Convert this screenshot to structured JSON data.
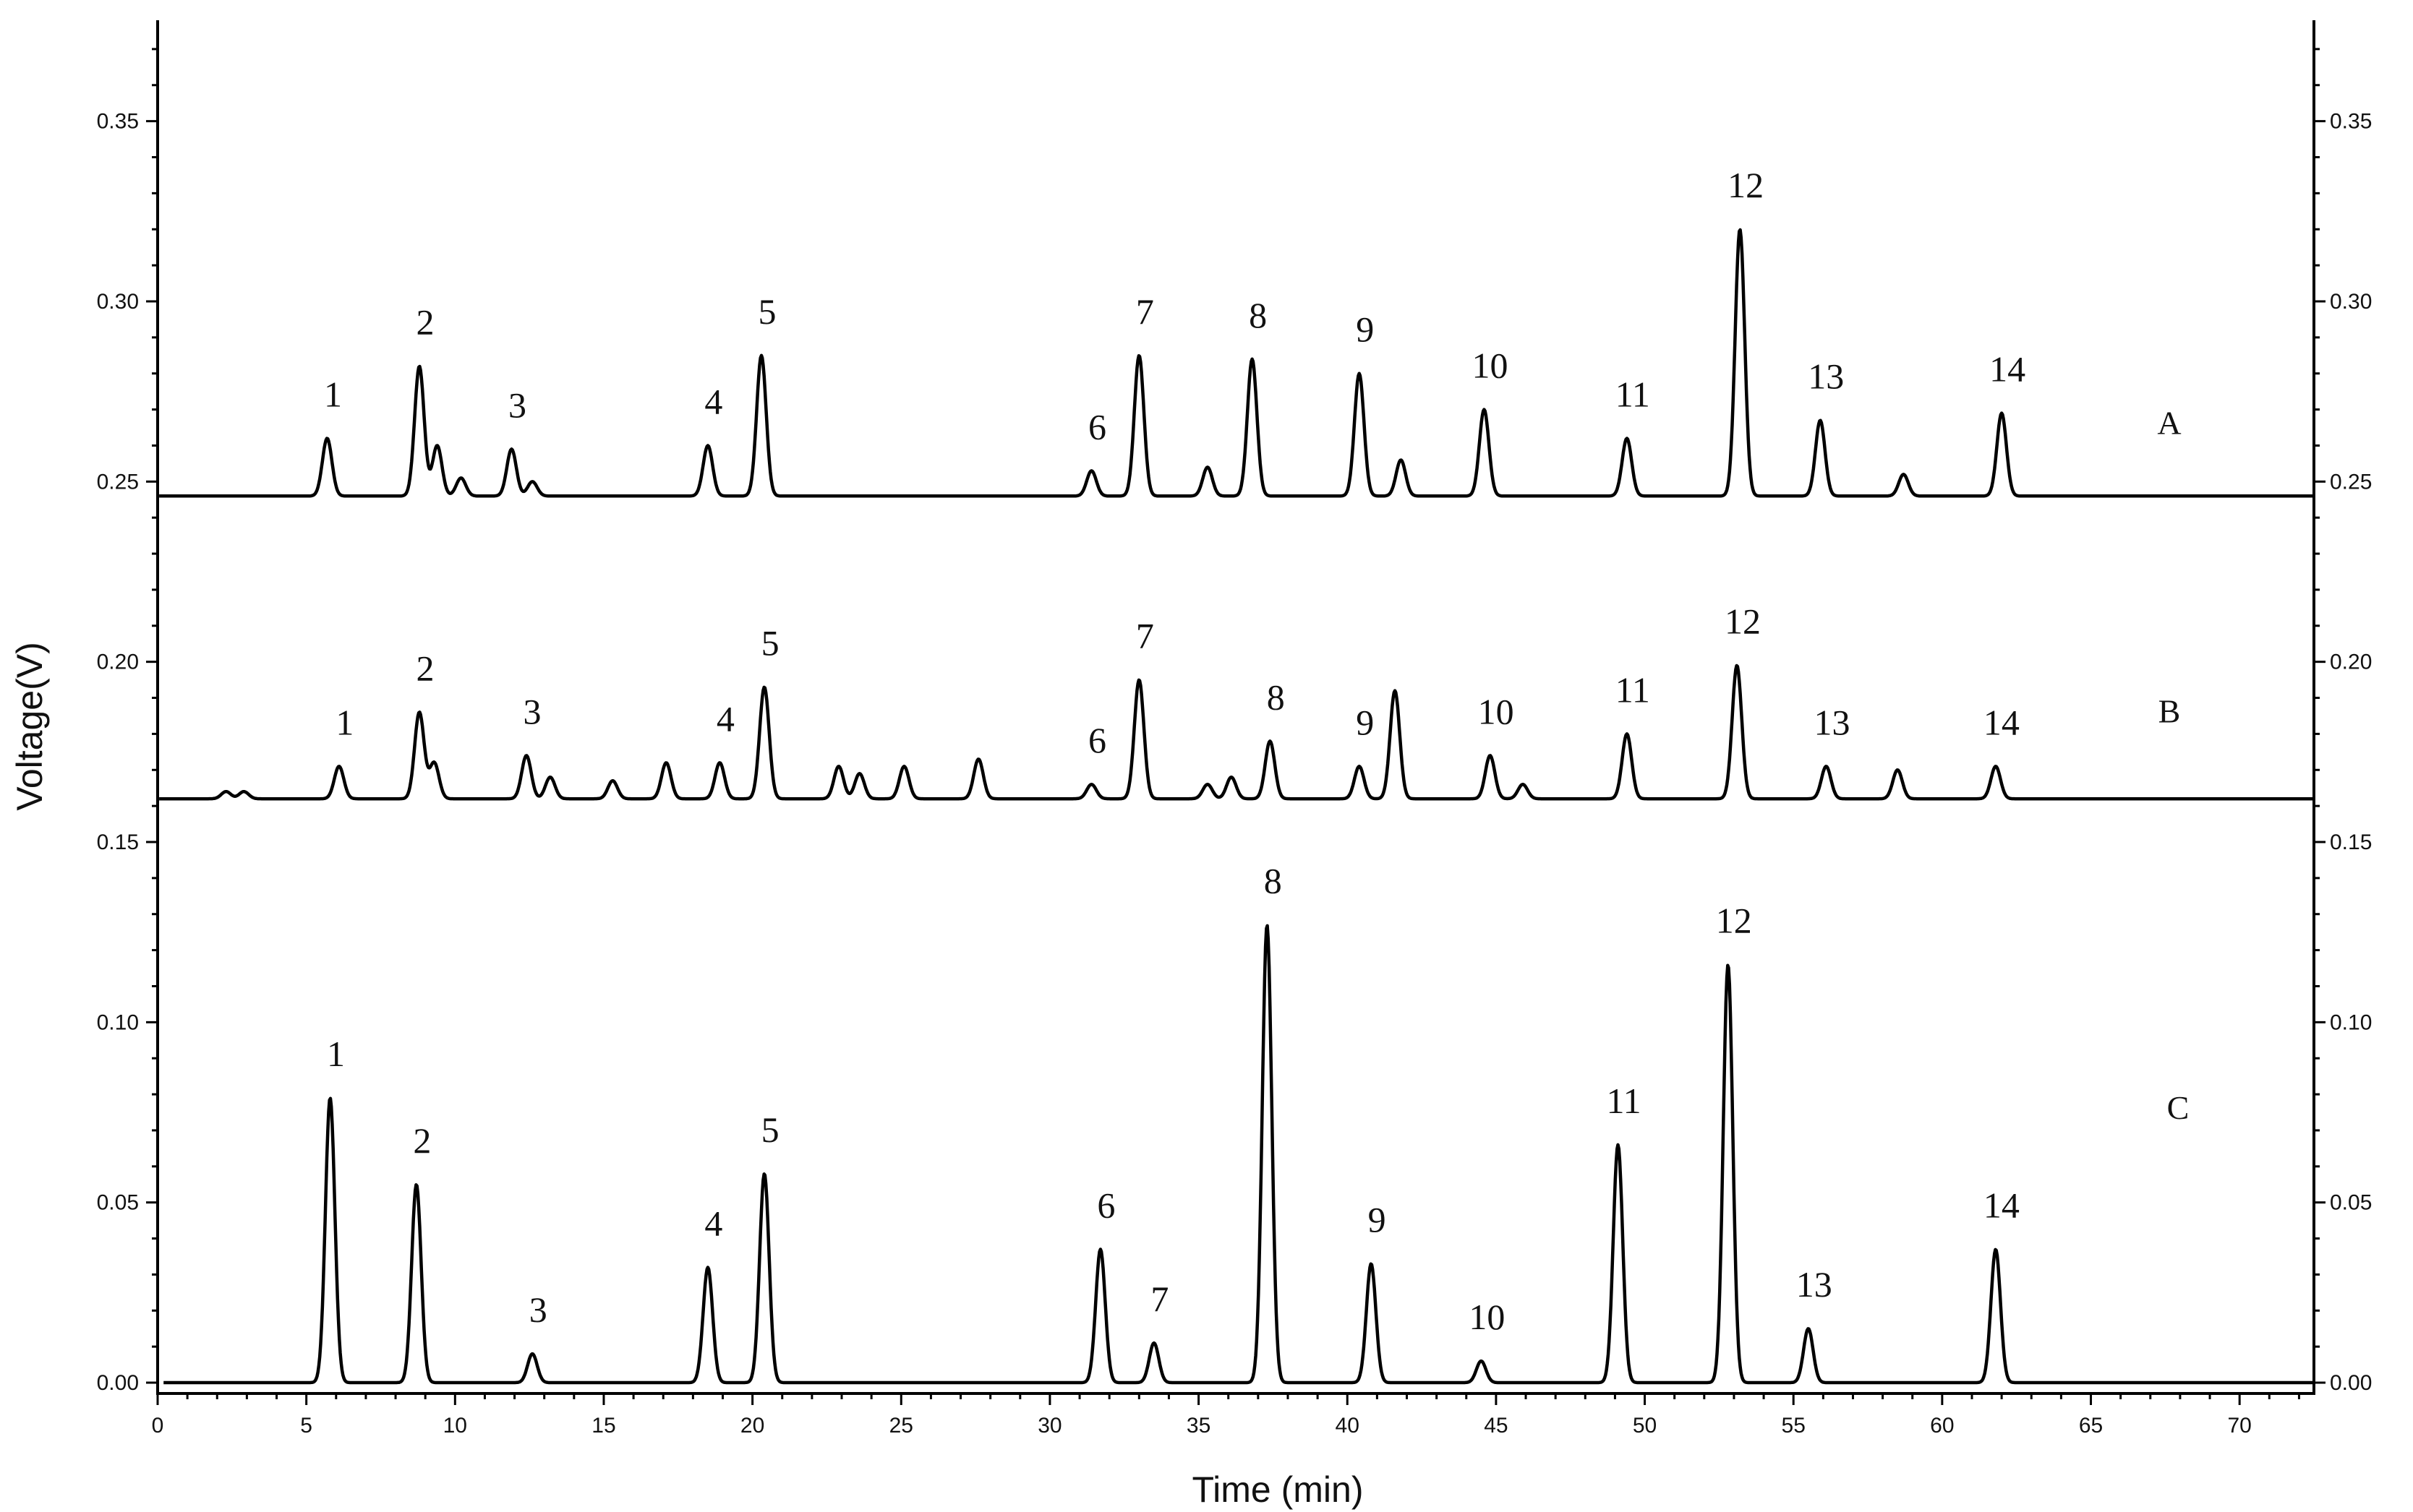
{
  "chart_data": {
    "type": "line",
    "xlabel": "Time (min)",
    "ylabel": "Voltage(V)",
    "xlim": [
      0,
      72.5
    ],
    "ylim": [
      -0.003,
      0.378
    ],
    "x_ticks": [
      "0",
      "5",
      "10",
      "15",
      "20",
      "25",
      "30",
      "35",
      "40",
      "45",
      "50",
      "55",
      "60",
      "65",
      "70"
    ],
    "y_ticks": [
      "0.00",
      "0.05",
      "0.10",
      "0.15",
      "0.20",
      "0.25",
      "0.30",
      "0.35"
    ],
    "y_right_ticks": [
      "0.00",
      "0.05",
      "0.10",
      "0.15",
      "0.20",
      "0.25",
      "0.30",
      "0.35"
    ],
    "grid": false,
    "series": [
      {
        "name": "A",
        "baseline": 0.246,
        "peaks": [
          {
            "x": 5.7,
            "y": 0.262,
            "label": "1"
          },
          {
            "x": 8.8,
            "y": 0.282,
            "label": "2"
          },
          {
            "x": 9.4,
            "y": 0.26
          },
          {
            "x": 10.2,
            "y": 0.251
          },
          {
            "x": 11.9,
            "y": 0.259,
            "label": "3"
          },
          {
            "x": 12.6,
            "y": 0.25
          },
          {
            "x": 18.5,
            "y": 0.26,
            "label": "4"
          },
          {
            "x": 20.3,
            "y": 0.285,
            "label": "5"
          },
          {
            "x": 31.4,
            "y": 0.253,
            "label": "6"
          },
          {
            "x": 33.0,
            "y": 0.285,
            "label": "7"
          },
          {
            "x": 35.3,
            "y": 0.254
          },
          {
            "x": 36.8,
            "y": 0.284,
            "label": "8"
          },
          {
            "x": 40.4,
            "y": 0.28,
            "label": "9"
          },
          {
            "x": 41.8,
            "y": 0.256
          },
          {
            "x": 44.6,
            "y": 0.27,
            "label": "10"
          },
          {
            "x": 49.4,
            "y": 0.262,
            "label": "11"
          },
          {
            "x": 53.2,
            "y": 0.32,
            "label": "12"
          },
          {
            "x": 55.9,
            "y": 0.267,
            "label": "13"
          },
          {
            "x": 58.7,
            "y": 0.252
          },
          {
            "x": 62.0,
            "y": 0.269,
            "label": "14"
          }
        ]
      },
      {
        "name": "B",
        "baseline": 0.162,
        "peaks": [
          {
            "x": 2.3,
            "y": 0.164
          },
          {
            "x": 2.9,
            "y": 0.164
          },
          {
            "x": 6.1,
            "y": 0.171,
            "label": "1"
          },
          {
            "x": 8.8,
            "y": 0.186,
            "label": "2"
          },
          {
            "x": 9.3,
            "y": 0.172
          },
          {
            "x": 12.4,
            "y": 0.174,
            "label": "3"
          },
          {
            "x": 13.2,
            "y": 0.168
          },
          {
            "x": 15.3,
            "y": 0.167
          },
          {
            "x": 17.1,
            "y": 0.172
          },
          {
            "x": 18.9,
            "y": 0.172,
            "label": "4"
          },
          {
            "x": 20.4,
            "y": 0.193,
            "label": "5"
          },
          {
            "x": 22.9,
            "y": 0.171
          },
          {
            "x": 23.6,
            "y": 0.169
          },
          {
            "x": 25.1,
            "y": 0.171
          },
          {
            "x": 27.6,
            "y": 0.173
          },
          {
            "x": 31.4,
            "y": 0.166,
            "label": "6"
          },
          {
            "x": 33.0,
            "y": 0.195,
            "label": "7"
          },
          {
            "x": 35.3,
            "y": 0.166
          },
          {
            "x": 36.1,
            "y": 0.168
          },
          {
            "x": 37.4,
            "y": 0.178,
            "label": "8"
          },
          {
            "x": 40.4,
            "y": 0.171,
            "label": "9"
          },
          {
            "x": 41.6,
            "y": 0.192
          },
          {
            "x": 44.8,
            "y": 0.174,
            "label": "10"
          },
          {
            "x": 45.9,
            "y": 0.166
          },
          {
            "x": 49.4,
            "y": 0.18,
            "label": "11"
          },
          {
            "x": 53.1,
            "y": 0.199,
            "label": "12"
          },
          {
            "x": 56.1,
            "y": 0.171,
            "label": "13"
          },
          {
            "x": 58.5,
            "y": 0.17
          },
          {
            "x": 61.8,
            "y": 0.171,
            "label": "14"
          }
        ]
      },
      {
        "name": "C",
        "baseline": 0.0,
        "peaks": [
          {
            "x": 5.8,
            "y": 0.079,
            "label": "1"
          },
          {
            "x": 8.7,
            "y": 0.055,
            "label": "2"
          },
          {
            "x": 12.6,
            "y": 0.008,
            "label": "3"
          },
          {
            "x": 18.5,
            "y": 0.032,
            "label": "4"
          },
          {
            "x": 20.4,
            "y": 0.058,
            "label": "5"
          },
          {
            "x": 31.7,
            "y": 0.037,
            "label": "6"
          },
          {
            "x": 33.5,
            "y": 0.011,
            "label": "7"
          },
          {
            "x": 37.3,
            "y": 0.127,
            "label": "8"
          },
          {
            "x": 40.8,
            "y": 0.033,
            "label": "9"
          },
          {
            "x": 44.5,
            "y": 0.006,
            "label": "10"
          },
          {
            "x": 49.1,
            "y": 0.066,
            "label": "11"
          },
          {
            "x": 52.8,
            "y": 0.116,
            "label": "12"
          },
          {
            "x": 55.5,
            "y": 0.015,
            "label": "13"
          },
          {
            "x": 61.8,
            "y": 0.037,
            "label": "14"
          }
        ]
      }
    ]
  }
}
